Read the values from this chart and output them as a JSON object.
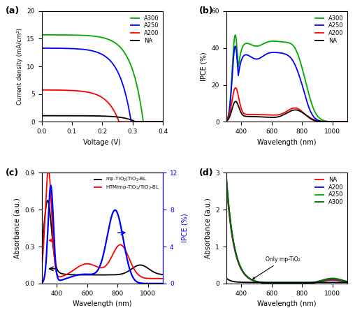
{
  "panel_labels": [
    "(a)",
    "(b)",
    "(c)",
    "(d)"
  ],
  "colors": {
    "A300": "#00aa00",
    "A250": "#0000ff",
    "A200": "#ff0000",
    "NA": "#000000",
    "blue_ipce": "#0000ff"
  },
  "panel_a": {
    "xlabel": "Voltage (V)",
    "ylabel": "Current density (mA/cm²)",
    "xlim": [
      0,
      0.4
    ],
    "ylim": [
      0,
      20
    ],
    "yticks": [
      0,
      5,
      10,
      15,
      20
    ],
    "xticks": [
      0.0,
      0.1,
      0.2,
      0.3,
      0.4
    ]
  },
  "panel_b": {
    "xlabel": "Wavelength (nm)",
    "ylabel": "IPCE (%)",
    "xlim": [
      300,
      1100
    ],
    "ylim": [
      0,
      60
    ],
    "yticks": [
      0,
      20,
      40,
      60
    ],
    "xticks": [
      400,
      600,
      800,
      1000
    ]
  },
  "panel_c": {
    "xlabel": "Wavelength (nm)",
    "ylabel": "Absorbance (a.u.)",
    "ylabel2": "IPCE (%)",
    "xlim": [
      300,
      1100
    ],
    "ylim": [
      0,
      0.9
    ],
    "ylim2": [
      0,
      12
    ],
    "yticks": [
      0.0,
      0.3,
      0.6,
      0.9
    ],
    "yticks2": [
      0,
      4,
      8,
      12
    ],
    "xticks": [
      400,
      600,
      800,
      1000
    ]
  },
  "panel_d": {
    "xlabel": "Wavelength (nm)",
    "ylabel": "Absorbance (a.u.)",
    "xlim": [
      300,
      1100
    ],
    "ylim": [
      0,
      3
    ],
    "yticks": [
      0,
      1,
      2,
      3
    ],
    "xticks": [
      400,
      600,
      800,
      1000
    ],
    "annotation": "Only mp-TiO₂"
  }
}
